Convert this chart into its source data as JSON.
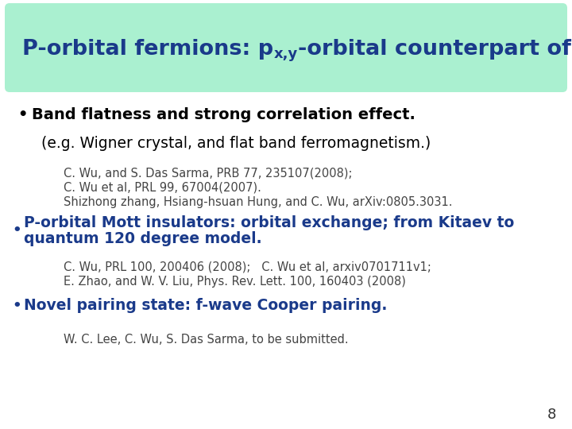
{
  "title_color": "#1a3a8a",
  "title_bg_color": "#aaf0d0",
  "bg_color": "#ffffff",
  "bullet1_bold": "Band flatness and strong correlation effect.",
  "bullet1_color": "#000000",
  "sub1": "(e.g. Wigner crystal, and flat band ferromagnetism.)",
  "ref1_line1": "C. Wu, and S. Das Sarma, PRB 77, 235107(2008);",
  "ref1_line2": "C. Wu et al, PRL 99, 67004(2007).",
  "ref1_line3": "Shizhong zhang, Hsiang-hsuan Hung, and C. Wu, arXiv:0805.3031.",
  "bullet2_line1": "P-orbital Mott insulators: orbital exchange; from Kitaev to",
  "bullet2_line2": "quantum 120 degree model.",
  "bullet2_color": "#1a3a8a",
  "ref2_line1": "C. Wu, PRL 100, 200406 (2008);   C. Wu et al, arxiv0701711v1;",
  "ref2_line2": "E. Zhao, and W. V. Liu, Phys. Rev. Lett. 100, 160403 (2008)",
  "bullet3": "Novel pairing state: f-wave Cooper pairing.",
  "bullet3_color": "#1a3a8a",
  "ref3": "W. C. Lee, C. Wu, S. Das Sarma, to be submitted.",
  "page_num": "8",
  "ref_color": "#444444",
  "sub1_color": "#000000",
  "title_part1": "P-orbital fermions: p",
  "title_sub": "x,y",
  "title_part2": "-orbital counterpart of graphene"
}
